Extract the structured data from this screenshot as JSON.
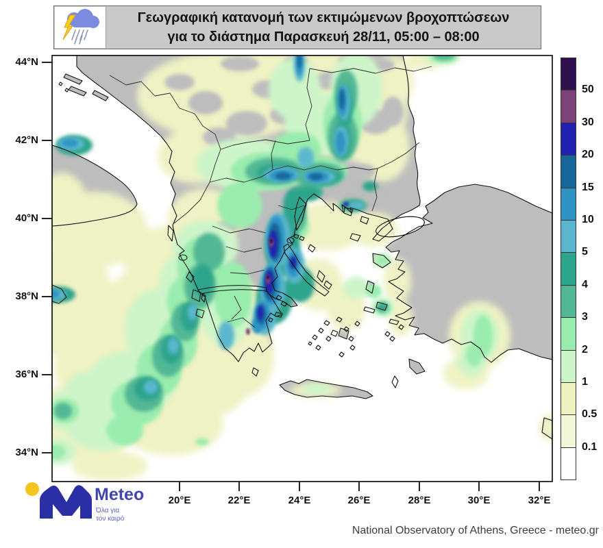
{
  "header": {
    "title_line1": "Γεωγραφική κατανομή των εκτιμώμενων βροχοπτώσεων",
    "title_line2": "για το διάστημα  Παρασκευή 28/11, 05:00 – 08:00"
  },
  "axes": {
    "lat": [
      "44°N",
      "42°N",
      "40°N",
      "38°N",
      "36°N",
      "34°N"
    ],
    "lon": [
      "20°E",
      "22°E",
      "24°E",
      "26°E",
      "28°E",
      "30°E",
      "32°E"
    ]
  },
  "colorbar": {
    "labels": [
      "50",
      "30",
      "20",
      "15",
      "10",
      "5",
      "4",
      "3",
      "2",
      "1",
      "0.5",
      "0.1"
    ],
    "colors": [
      "#30104e",
      "#7d4277",
      "#2222b2",
      "#17679a",
      "#2e94c4",
      "#5bb7cd",
      "#2da48c",
      "#52b795",
      "#9aecae",
      "#cdf5c9",
      "#eef1c0",
      "#f4f6d8",
      "#ffffff"
    ]
  },
  "map_colors": {
    "land": "#bdbdbd",
    "sea": "#ffffff",
    "coastline": "#111111"
  },
  "footer": {
    "brand": "Meteo",
    "tagline_line1": "Όλα για",
    "tagline_line2": "τον καιρό",
    "attribution": "National Observatory of Athens, Greece - meteo.gr"
  }
}
